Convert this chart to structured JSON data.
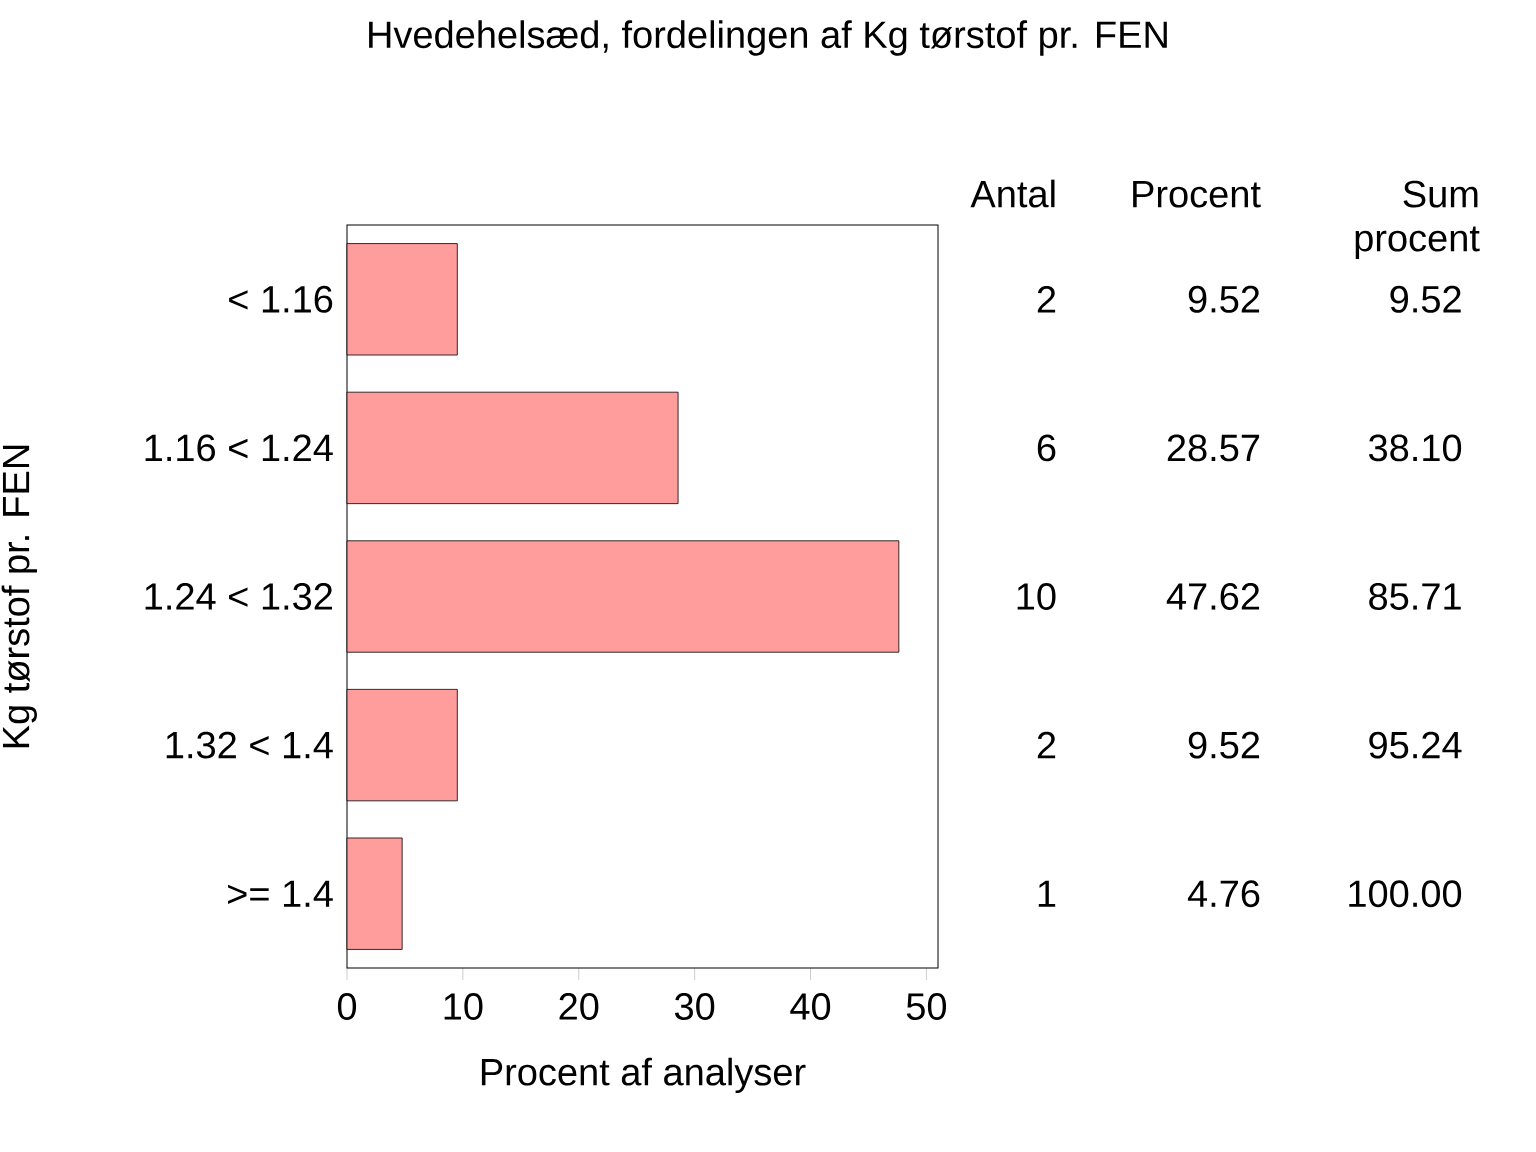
{
  "chart_data": {
    "type": "bar",
    "orientation": "horizontal",
    "title": "Hvedehelsæd, fordelingen af Kg tørstof pr. FEN",
    "xlabel": "Procent af analyser",
    "ylabel": "Kg tørstof pr. FEN",
    "categories": [
      "< 1.16",
      "1.16 < 1.24",
      "1.24 < 1.32",
      "1.32 < 1.4",
      ">= 1.4"
    ],
    "values": [
      9.52,
      28.57,
      47.62,
      9.52,
      4.76
    ],
    "color": "#ff9c9c",
    "xlim": [
      0,
      51
    ],
    "xticks": [
      0,
      10,
      20,
      30,
      40,
      50
    ],
    "grid": false,
    "annotations": [
      "Antal",
      "Procent",
      "Sum procent",
      "2",
      "6",
      "10",
      "2",
      "1",
      "9.52",
      "28.57",
      "47.62",
      "9.52",
      "4.76",
      "9.52",
      "38.10",
      "85.71",
      "95.24",
      "100.00"
    ]
  }
}
